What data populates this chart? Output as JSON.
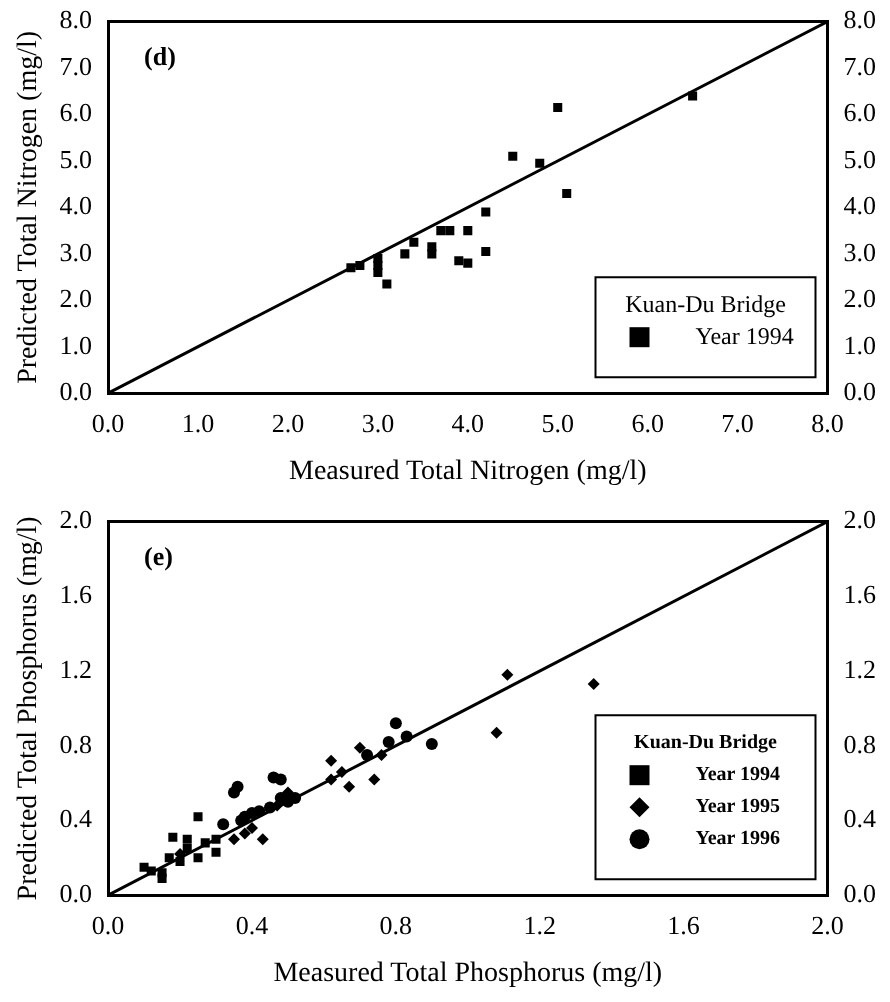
{
  "chart_data": [
    {
      "type": "scatter",
      "xlabel": "Measured Total Nitrogen (mg/l)",
      "ylabel": "Predicted Total Nitrogen (mg/l)",
      "annotations": [
        "(d)"
      ],
      "legend_title": "Kuan-Du Bridge",
      "legend": "bottom right",
      "grid": false,
      "xlim": [
        0,
        8
      ],
      "xticks": [
        {
          "value": 0,
          "label": "0.0"
        },
        {
          "value": 1,
          "label": "1.0"
        },
        {
          "value": 2,
          "label": "2.0"
        },
        {
          "value": 3,
          "label": "3.0"
        },
        {
          "value": 4,
          "label": "4.0"
        },
        {
          "value": 5,
          "label": "5.0"
        },
        {
          "value": 6,
          "label": "6.0"
        },
        {
          "value": 7,
          "label": "7.0"
        },
        {
          "value": 8,
          "label": "8.0"
        }
      ],
      "ylim": [
        0,
        8
      ],
      "yticks": [
        {
          "value": 0,
          "label": "0.0"
        },
        {
          "value": 1,
          "label": "1.0"
        },
        {
          "value": 2,
          "label": "2.0"
        },
        {
          "value": 3,
          "label": "3.0"
        },
        {
          "value": 4,
          "label": "4.0"
        },
        {
          "value": 5,
          "label": "5.0"
        },
        {
          "value": 6,
          "label": "6.0"
        },
        {
          "value": 7,
          "label": "7.0"
        },
        {
          "value": 8,
          "label": "8.0"
        }
      ],
      "y2lim": [
        0,
        8
      ],
      "y2ticks": [
        {
          "value": 0,
          "label": "0.0"
        },
        {
          "value": 1,
          "label": "1.0"
        },
        {
          "value": 2,
          "label": "2.0"
        },
        {
          "value": 3,
          "label": "3.0"
        },
        {
          "value": 4,
          "label": "4.0"
        },
        {
          "value": 5,
          "label": "5.0"
        },
        {
          "value": 6,
          "label": "6.0"
        },
        {
          "value": 7,
          "label": "7.0"
        },
        {
          "value": 8,
          "label": "8.0"
        }
      ],
      "series": [
        {
          "name": "Year 1994",
          "type": "scatter",
          "marker": "square",
          "color": "#000000",
          "x": [
            2.7,
            2.8,
            3.0,
            3.0,
            3.0,
            3.1,
            3.3,
            3.4,
            3.6,
            3.6,
            3.7,
            3.8,
            3.9,
            4.0,
            4.0,
            4.2,
            4.2,
            4.5,
            4.8,
            5.0,
            5.1,
            6.5
          ],
          "values": [
            2.7,
            2.75,
            2.9,
            2.75,
            2.6,
            2.35,
            3.0,
            3.25,
            3.15,
            3.0,
            3.5,
            3.5,
            2.85,
            2.8,
            3.5,
            3.9,
            3.05,
            5.1,
            4.95,
            6.15,
            4.3,
            6.4
          ]
        },
        {
          "type": "line",
          "marker": "none",
          "line_style": "solid",
          "color": "#000000",
          "x": [
            0,
            8
          ],
          "values": [
            0,
            8
          ]
        }
      ]
    },
    {
      "type": "scatter",
      "xlabel": "Measured Total Phosphorus (mg/l)",
      "ylabel": "Predicted Total Phosphorus (mg/l)",
      "annotations": [
        "(e)"
      ],
      "legend_title": "Kuan-Du Bridge",
      "legend": "bottom right",
      "grid": false,
      "xlim": [
        0,
        2
      ],
      "xticks": [
        {
          "value": 0,
          "label": "0.0"
        },
        0.4,
        0.8,
        1.2,
        1.6,
        {
          "value": 2,
          "label": "2.0"
        }
      ],
      "ylim": [
        0,
        2
      ],
      "yticks": [
        {
          "value": 0,
          "label": "0.0"
        },
        0.4,
        0.8,
        1.2,
        1.6,
        {
          "value": 2,
          "label": "2.0"
        }
      ],
      "y2lim": [
        0,
        2
      ],
      "y2ticks": [
        {
          "value": 0,
          "label": "0.0"
        },
        0.4,
        0.8,
        1.2,
        1.6,
        {
          "value": 2,
          "label": "2.0"
        }
      ],
      "series": [
        {
          "name": "Year 1994",
          "type": "scatter",
          "marker": "square",
          "color": "#000000",
          "x": [
            0.1,
            0.12,
            0.15,
            0.15,
            0.17,
            0.18,
            0.2,
            0.22,
            0.22,
            0.25,
            0.25,
            0.27,
            0.3,
            0.3
          ],
          "values": [
            0.15,
            0.13,
            0.09,
            0.12,
            0.2,
            0.31,
            0.18,
            0.3,
            0.25,
            0.42,
            0.2,
            0.28,
            0.23,
            0.3
          ]
        },
        {
          "name": "Year 1995",
          "type": "scatter",
          "marker": "diamond",
          "color": "#000000",
          "x": [
            0.2,
            0.27,
            0.35,
            0.38,
            0.43,
            0.4,
            0.47,
            0.5,
            0.62,
            0.62,
            0.65,
            0.67,
            0.7,
            0.74,
            0.76,
            1.08,
            1.11,
            1.35
          ],
          "values": [
            0.22,
            null,
            0.3,
            0.33,
            0.3,
            0.36,
            0.48,
            0.55,
            0.72,
            0.62,
            0.66,
            0.58,
            0.79,
            0.62,
            0.75,
            0.87,
            1.18,
            1.13
          ]
        },
        {
          "name": "Year 1996",
          "type": "scatter",
          "marker": "circle",
          "color": "#000000",
          "x": [
            0.32,
            0.35,
            0.36,
            0.37,
            0.38,
            0.4,
            0.42,
            0.45,
            0.46,
            0.48,
            0.48,
            0.5,
            0.52,
            0.72,
            0.78,
            0.8,
            0.83,
            0.9
          ],
          "values": [
            0.38,
            0.55,
            0.58,
            0.4,
            0.42,
            0.44,
            0.45,
            0.47,
            0.63,
            0.62,
            0.52,
            0.5,
            0.52,
            0.75,
            0.82,
            0.92,
            0.85,
            0.81
          ]
        },
        {
          "type": "line",
          "marker": "none",
          "line_style": "solid",
          "color": "#000000",
          "x": [
            0,
            2
          ],
          "values": [
            0,
            2
          ]
        }
      ]
    }
  ]
}
